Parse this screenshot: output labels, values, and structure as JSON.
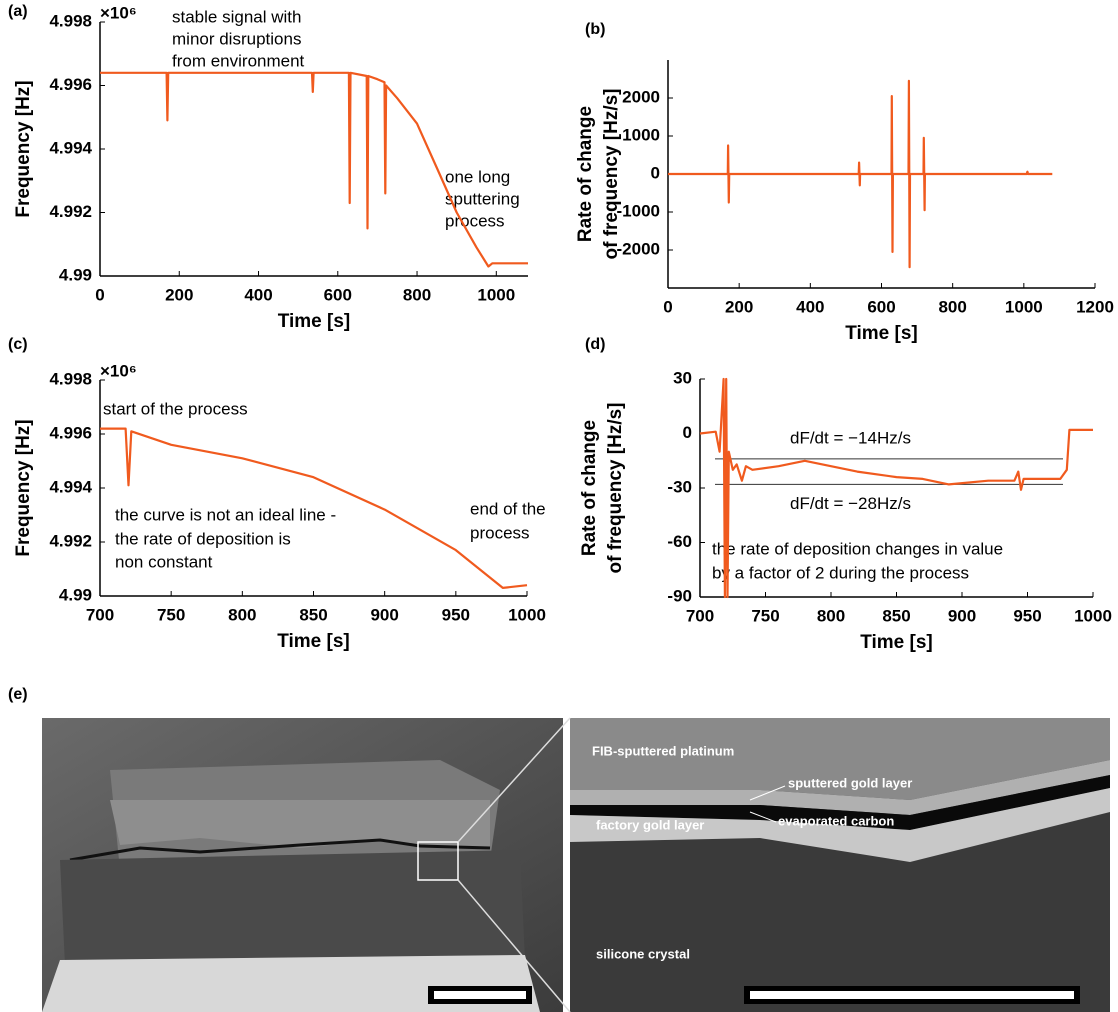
{
  "chart_data": [
    {
      "type": "line",
      "panel": "(a)",
      "xlabel": "Time [s]",
      "ylabel": "Frequency [Hz]",
      "y_multiplier": "×10⁶",
      "xlim": [
        0,
        1080
      ],
      "xticks": [
        0,
        200,
        400,
        600,
        800,
        1000
      ],
      "ylim": [
        4.99,
        4.998
      ],
      "yticks": [
        4.99,
        4.992,
        4.994,
        4.996,
        4.998
      ],
      "x": [
        0,
        168,
        170,
        172,
        535,
        537,
        539,
        628,
        630,
        632,
        673,
        675,
        677,
        700,
        718,
        720,
        722,
        750,
        800,
        850,
        900,
        950,
        980,
        990,
        1080
      ],
      "series": [
        {
          "color": "#f05a1e",
          "values": [
            4.9964,
            4.9964,
            4.9949,
            4.9964,
            4.9964,
            4.9958,
            4.9964,
            4.9964,
            4.9923,
            4.9964,
            4.9963,
            4.9915,
            4.9963,
            4.9962,
            4.9961,
            4.9926,
            4.996,
            4.9956,
            4.9948,
            4.9934,
            4.992,
            4.9909,
            4.9903,
            4.9904,
            4.9904
          ]
        }
      ],
      "annotations": [
        "stable signal with",
        "minor disruptions",
        "from environment",
        "one long",
        "sputtering",
        "process"
      ]
    },
    {
      "type": "line",
      "panel": "(b)",
      "xlabel": "Time [s]",
      "ylabel": [
        "Rate of change",
        "of frequency [Hz/s]"
      ],
      "xlim": [
        0,
        1200
      ],
      "xticks": [
        0,
        200,
        400,
        600,
        800,
        1000,
        1200
      ],
      "ylim": [
        -3000,
        3000
      ],
      "yticks": [
        -2000,
        -1000,
        0,
        1000,
        2000
      ],
      "x": [
        0,
        168,
        169,
        171,
        172,
        536,
        537,
        539,
        540,
        628,
        629,
        631,
        632,
        676,
        677,
        679,
        680,
        718,
        719,
        721,
        722,
        1008,
        1010,
        1012,
        1080
      ],
      "series": [
        {
          "color": "#f05a1e",
          "values": [
            0,
            0,
            750,
            -750,
            0,
            0,
            300,
            -300,
            0,
            0,
            2050,
            -2050,
            0,
            0,
            2450,
            -2450,
            0,
            0,
            950,
            -950,
            0,
            0,
            60,
            0,
            0
          ]
        }
      ]
    },
    {
      "type": "line",
      "panel": "(c)",
      "xlabel": "Time [s]",
      "ylabel": "Frequency [Hz]",
      "y_multiplier": "×10⁶",
      "xlim": [
        700,
        1000
      ],
      "xticks": [
        700,
        750,
        800,
        850,
        900,
        950,
        1000
      ],
      "ylim": [
        4.99,
        4.998
      ],
      "yticks": [
        4.99,
        4.992,
        4.994,
        4.996,
        4.998
      ],
      "x": [
        700,
        718,
        720,
        722,
        750,
        800,
        850,
        900,
        950,
        983,
        1000
      ],
      "series": [
        {
          "color": "#f05a1e",
          "values": [
            4.9962,
            4.9962,
            4.9941,
            4.9961,
            4.9956,
            4.9951,
            4.9944,
            4.9932,
            4.9917,
            4.9903,
            4.9904
          ]
        }
      ],
      "annotations": [
        "start of the process",
        "the curve is not an ideal line -",
        "the rate of deposition is",
        "non constant",
        "end of the",
        "process"
      ]
    },
    {
      "type": "line",
      "panel": "(d)",
      "xlabel": "Time [s]",
      "ylabel": [
        "Rate of change",
        "of frequency [Hz/s]"
      ],
      "xlim": [
        700,
        1000
      ],
      "xticks": [
        700,
        750,
        800,
        850,
        900,
        950,
        1000
      ],
      "ylim": [
        -90,
        30
      ],
      "yticks": [
        -90,
        -60,
        -30,
        0,
        30
      ],
      "x": [
        700,
        712,
        715,
        718,
        719,
        720,
        721,
        722,
        725,
        728,
        732,
        735,
        740,
        760,
        780,
        800,
        820,
        850,
        870,
        890,
        920,
        940,
        943,
        945,
        947,
        975,
        980,
        982,
        990,
        1000
      ],
      "series": [
        {
          "color": "#f05a1e",
          "values": [
            0,
            1,
            -10,
            30,
            -90,
            30,
            -90,
            -10,
            -20,
            -17,
            -26,
            -18,
            -20,
            -18,
            -15,
            -18,
            -21,
            -24,
            -25,
            -28,
            -26,
            -26,
            -21,
            -31,
            -25,
            -25,
            -20,
            2,
            2,
            2
          ]
        }
      ],
      "reference_lines": [
        {
          "value": -14,
          "label": "dF/dt =   −14Hz/s"
        },
        {
          "value": -28,
          "label": "dF/dt =   −28Hz/s"
        }
      ],
      "annotations": [
        "the rate of deposition changes in value",
        "by a factor of 2 during the process"
      ]
    }
  ],
  "figure_e": {
    "panel": "(e)",
    "labels": [
      "FIB-sputtered platinum",
      "sputtered gold layer",
      "evaporated carbon",
      "factory gold layer",
      "silicone crystal"
    ]
  }
}
